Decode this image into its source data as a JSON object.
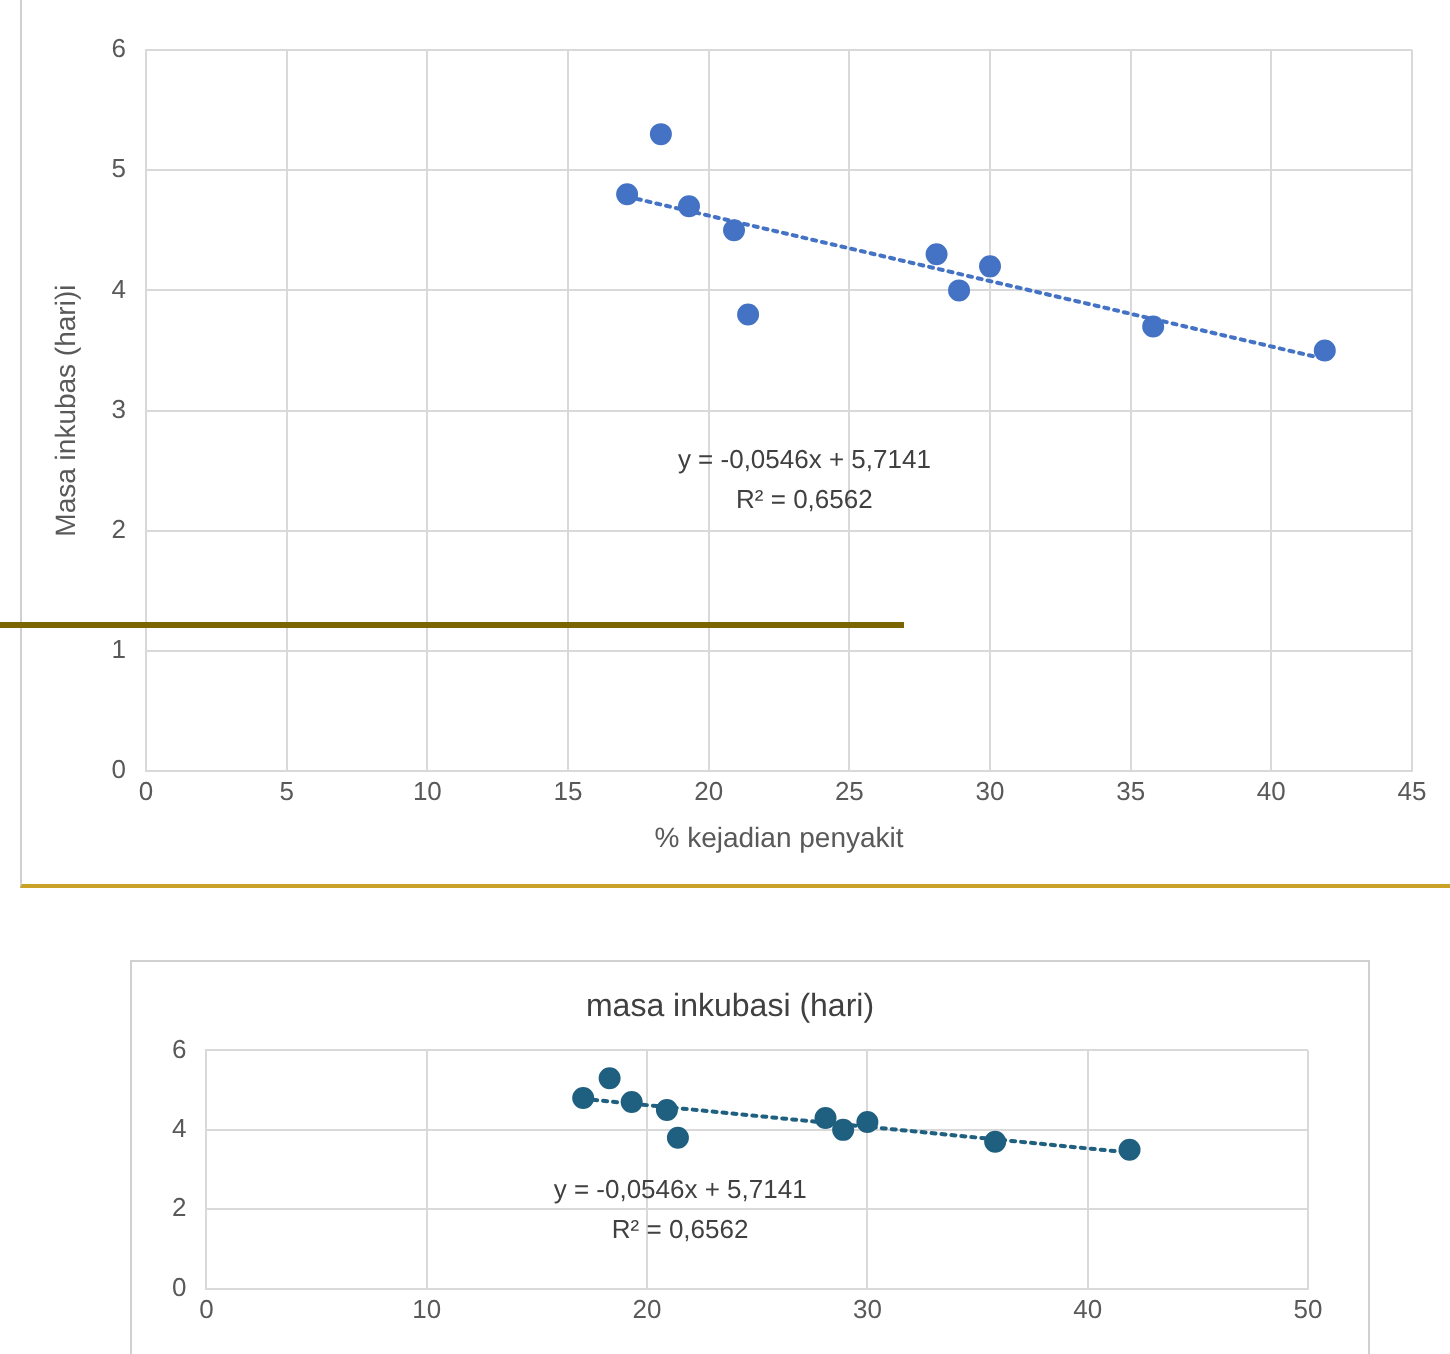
{
  "chart_data": [
    {
      "type": "scatter",
      "xlabel": "% kejadian penyakit",
      "ylabel": "Masa inkubas (hari)i",
      "xlim": [
        0,
        45
      ],
      "xticks": [
        0,
        5,
        10,
        15,
        20,
        25,
        30,
        35,
        40,
        45
      ],
      "ylim": [
        0,
        6
      ],
      "yticks": [
        0,
        1,
        2,
        3,
        4,
        5,
        6
      ],
      "grid": true,
      "legend": false,
      "annotations": [
        "y = -0,0546x + 5,7141",
        "R² = 0,6562"
      ],
      "series": [
        {
          "type": "scatter",
          "marker": "circle",
          "color": "#4472c4",
          "x": [
            17.1,
            18.3,
            19.3,
            20.9,
            21.4,
            28.1,
            28.9,
            30.0,
            35.8,
            41.9
          ],
          "values": [
            4.8,
            5.3,
            4.7,
            4.5,
            3.8,
            4.3,
            4.0,
            4.2,
            3.7,
            3.5
          ]
        },
        {
          "type": "line",
          "marker": "none",
          "color": "#4472c4",
          "line_style": "dotted",
          "x": [
            17.1,
            41.9
          ],
          "values": [
            4.78,
            3.43
          ]
        }
      ]
    },
    {
      "type": "scatter",
      "title": "masa inkubasi (hari)",
      "xlim": [
        0,
        50
      ],
      "xticks": [
        0,
        10,
        20,
        30,
        40,
        50
      ],
      "ylim": [
        0,
        6
      ],
      "yticks": [
        0,
        2,
        4,
        6
      ],
      "grid": true,
      "legend": false,
      "annotations": [
        "y = -0,0546x + 5,7141",
        "R² = 0,6562"
      ],
      "series": [
        {
          "type": "scatter",
          "marker": "circle",
          "color": "#1f5f7f",
          "x": [
            17.1,
            18.3,
            19.3,
            20.9,
            21.4,
            28.1,
            28.9,
            30.0,
            35.8,
            41.9
          ],
          "values": [
            4.8,
            5.3,
            4.7,
            4.5,
            3.8,
            4.3,
            4.0,
            4.2,
            3.7,
            3.5
          ]
        },
        {
          "type": "line",
          "marker": "none",
          "color": "#1f5f7f",
          "line_style": "dotted",
          "x": [
            17.1,
            41.9
          ],
          "values": [
            4.78,
            3.43
          ]
        }
      ]
    }
  ]
}
